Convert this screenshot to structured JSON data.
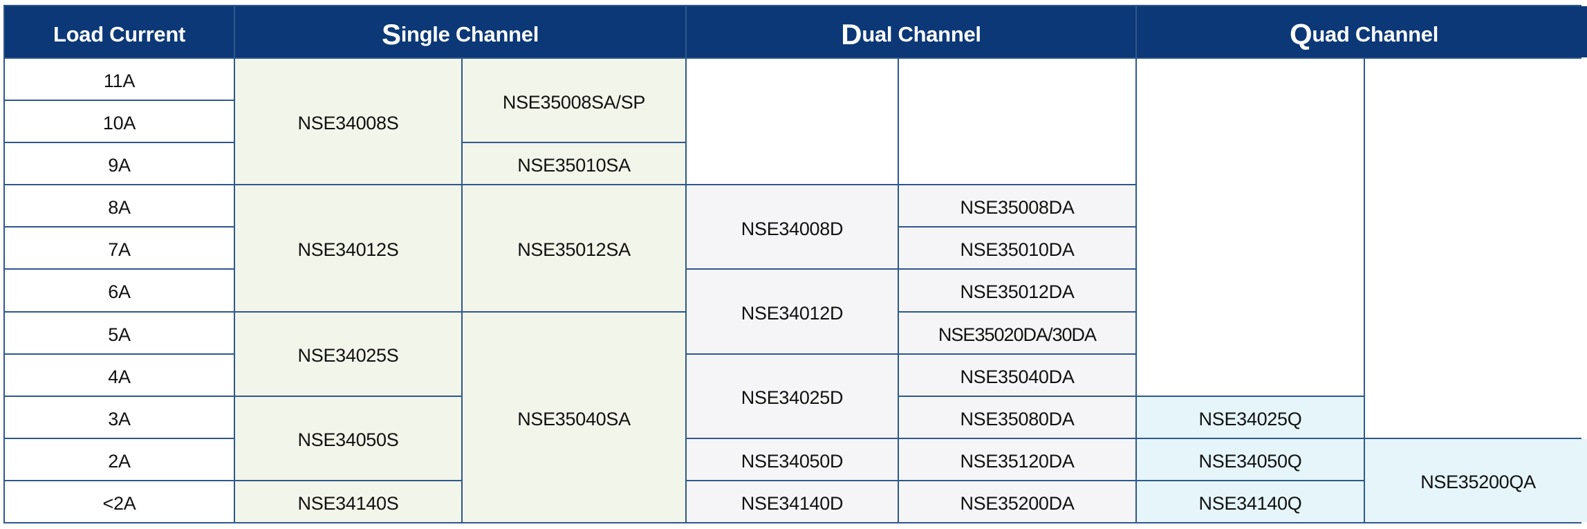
{
  "header": {
    "load_current": "Load Current",
    "single": {
      "initial": "S",
      "rest": "ingle Channel"
    },
    "dual": {
      "initial": "D",
      "rest": "ual Channel"
    },
    "quad": {
      "initial": "Q",
      "rest": "uad Channel"
    }
  },
  "load_currents": [
    "11A",
    "10A",
    "9A",
    "8A",
    "7A",
    "6A",
    "5A",
    "4A",
    "3A",
    "2A",
    "<2A"
  ],
  "single": {
    "col1": [
      "NSE34008S",
      "NSE34012S",
      "NSE34025S",
      "NSE34050S",
      "NSE34140S"
    ],
    "col2": [
      "NSE35008SA/SP",
      "NSE35010SA",
      "NSE35012SA",
      "NSE35040SA"
    ]
  },
  "dual": {
    "col1": [
      "NSE34008D",
      "NSE34012D",
      "NSE34025D",
      "NSE34050D",
      "NSE34140D"
    ],
    "col2": [
      "NSE35008DA",
      "NSE35010DA",
      "NSE35012DA",
      "NSE35020DA/30DA",
      "NSE35040DA",
      "NSE35080DA",
      "NSE35120DA",
      "NSE35200DA"
    ]
  },
  "quad": {
    "col1": [
      "NSE34025Q",
      "NSE34050Q",
      "NSE34140Q"
    ],
    "col2": [
      "NSE35200QA"
    ]
  },
  "colors": {
    "header": "#0c3877",
    "border": "#2e578c",
    "single": "#f2f5e9",
    "dual": "#f5f5f7",
    "quad": "#e5f5fa"
  }
}
